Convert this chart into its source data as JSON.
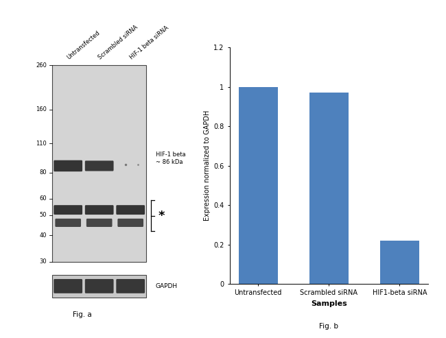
{
  "fig_width": 6.5,
  "fig_height": 4.93,
  "dpi": 100,
  "background_color": "#ffffff",
  "wb_panel": {
    "col_labels": [
      "Untransfected",
      "Scrambled siRNA",
      "HIF-1 beta siRNA"
    ],
    "mw_markers": [
      260,
      160,
      110,
      80,
      60,
      50,
      40,
      30
    ],
    "hif1b_label": "HIF-1 beta\n~ 86 kDa",
    "star_label": "*",
    "gapdh_label": "GAPDH",
    "fig_a_label": "Fig. a",
    "gel_bg": "#d4d4d4",
    "band_color": "#222222",
    "border_color": "#444444",
    "gapdh_bg": "#c8c8c8"
  },
  "bar_panel": {
    "categories": [
      "Untransfected",
      "Scrambled siRNA",
      "HIF1-beta siRNA"
    ],
    "values": [
      1.0,
      0.97,
      0.22
    ],
    "bar_color": "#4e81bd",
    "ylabel": "Expression normalized to GAPDH",
    "xlabel": "Samples",
    "ylim": [
      0,
      1.2
    ],
    "yticks": [
      0,
      0.2,
      0.4,
      0.6,
      0.8,
      1.0,
      1.2
    ],
    "fig_b_label": "Fig. b",
    "xlabel_fontsize": 8,
    "ylabel_fontsize": 7,
    "tick_fontsize": 7,
    "label_fontweight": "bold"
  }
}
